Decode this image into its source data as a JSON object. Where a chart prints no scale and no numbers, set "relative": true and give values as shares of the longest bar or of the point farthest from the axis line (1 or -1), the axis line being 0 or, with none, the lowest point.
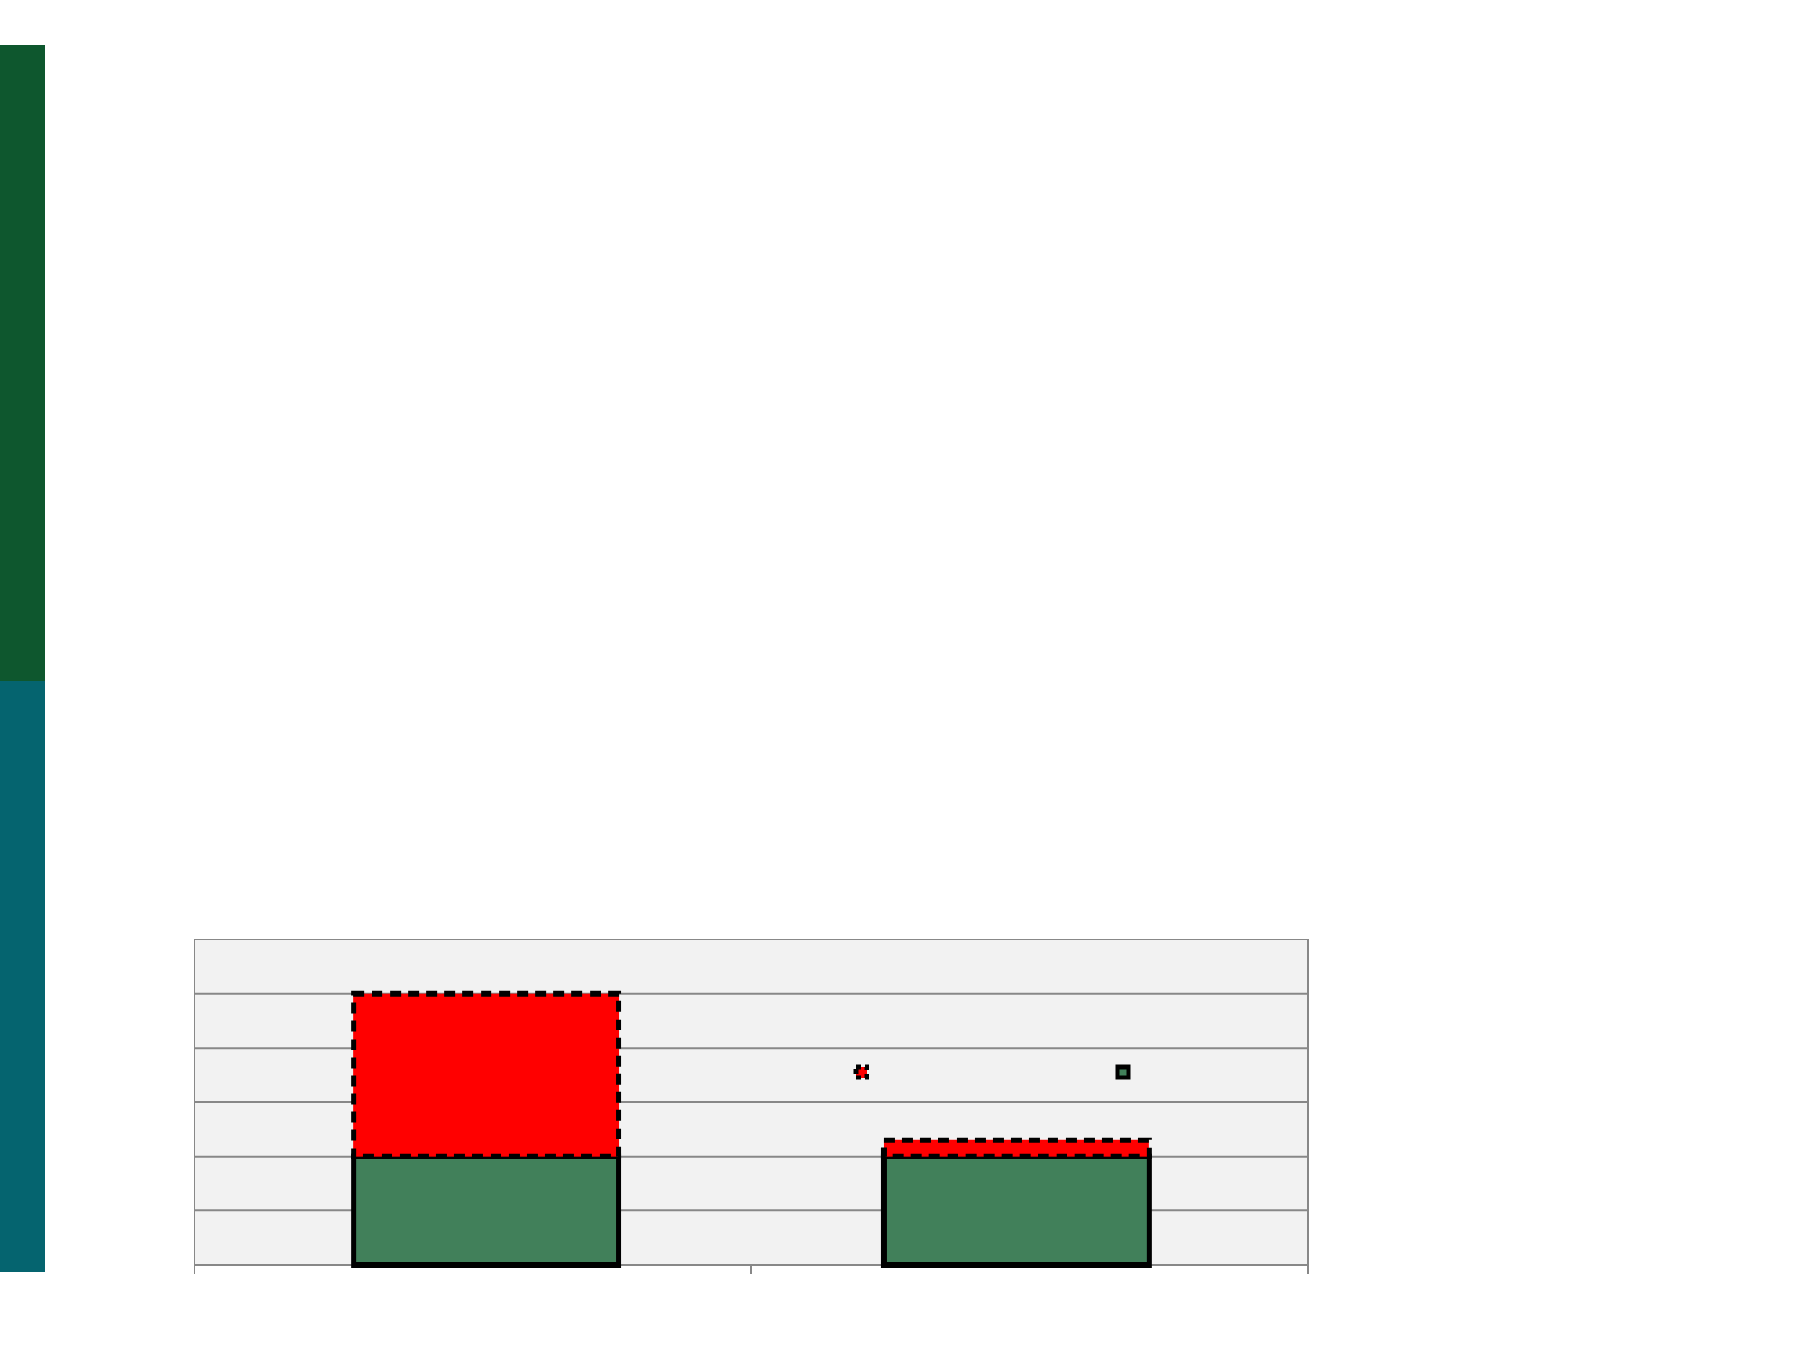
{
  "chart_data": {
    "type": "bar",
    "relative": true,
    "stacked": true,
    "categories": [
      null,
      null
    ],
    "grid": "y",
    "series": [
      {
        "color": "#41805a",
        "values": [
          0.4,
          0.4
        ],
        "line_style": "solid"
      },
      {
        "color": "#ff0000",
        "values": [
          0.6,
          0.06
        ],
        "line_style": "dashed"
      }
    ]
  }
}
